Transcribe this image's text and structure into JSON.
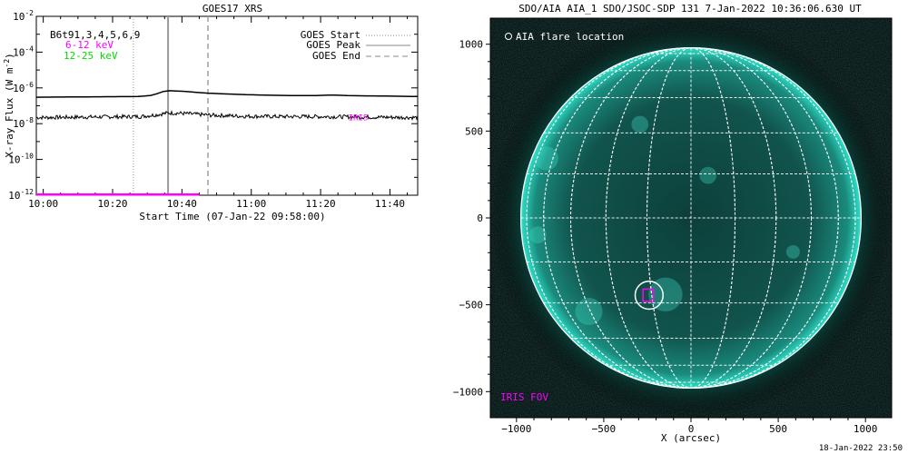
{
  "chart_data": [
    {
      "type": "line",
      "title": "GOES17 XRS",
      "xlabel": "Start Time (07-Jan-22 09:58:00)",
      "ylabel": "X-ray Flux (W m^-2)",
      "ylabel_main": "X-ray Flux (W m",
      "ylabel_unit_sup": "-2",
      "ylabel_close": ")",
      "yscale": "log",
      "ylim": [
        1e-12,
        0.01
      ],
      "xlim_minutes": [
        0,
        110
      ],
      "x_tick_labels": [
        "10:00",
        "10:20",
        "10:40",
        "11:00",
        "11:20",
        "11:40"
      ],
      "x_tick_minutes": [
        2,
        22,
        42,
        62,
        82,
        102
      ],
      "y_tick_exponents": [
        -12,
        -10,
        -8,
        -6,
        -4,
        -2
      ],
      "grid": false,
      "bad_sat_label": "B6t91,3,4,5,6,9",
      "channel_labels": [
        {
          "text": "6-12 keV",
          "color": "#ff00ff"
        },
        {
          "text": "12-25 keV",
          "color": "#00dd00"
        }
      ],
      "legend": {
        "position": "top-right",
        "entries": [
          {
            "label": "GOES Start",
            "style": "dotted",
            "minute": 28
          },
          {
            "label": "GOES Peak",
            "style": "solid",
            "minute": 38
          },
          {
            "label": "GOES End",
            "style": "dashed",
            "minute": 49.5
          }
        ]
      },
      "series": [
        {
          "color": "#000000",
          "x": [
            0,
            10,
            20,
            30,
            34,
            36,
            38,
            42,
            50,
            60,
            70,
            80,
            85,
            90,
            100,
            110
          ],
          "y": [
            3e-07,
            3.1e-07,
            3.2e-07,
            3.3e-07,
            4e-07,
            6e-07,
            7e-07,
            6.5e-07,
            5e-07,
            4.2e-07,
            3.8e-07,
            3.7e-07,
            4e-07,
            3.7e-07,
            3.5e-07,
            3.3e-07
          ]
        },
        {
          "color": "#000000",
          "noisy": true,
          "x": [
            0,
            10,
            20,
            30,
            35,
            38,
            42,
            50,
            60,
            70,
            80,
            90,
            100,
            110
          ],
          "y": [
            2.2e-08,
            2.3e-08,
            2.4e-08,
            2.5e-08,
            3.2e-08,
            4e-08,
            3.8e-08,
            3e-08,
            2.6e-08,
            2.5e-08,
            2.5e-08,
            2.4e-08,
            2.3e-08,
            2.2e-08
          ]
        },
        {
          "color": "#ff00ff",
          "x": [
            0,
            47
          ],
          "y": [
            1.1e-12,
            1.1e-12
          ]
        }
      ],
      "annotations": [
        {
          "text": "IRIS",
          "color": "#ff00ff",
          "minute": 90,
          "flux": 2.5e-08
        }
      ]
    },
    {
      "type": "scatter",
      "title": "SDO/AIA AIA_1 SDO/JSOC-SDP 131  7-Jan-2022 10:36:06.630 UT",
      "xlabel": "X (arcsec)",
      "ylabel": "",
      "xlim": [
        -1150,
        1150
      ],
      "ylim": [
        -1150,
        1150
      ],
      "x_ticks": [
        -1000,
        -500,
        0,
        500,
        1000
      ],
      "y_ticks": [
        -1000,
        -500,
        0,
        500,
        1000
      ],
      "solar_radius_arcsec": 975,
      "grid_spacing_deg": 15,
      "legend_label": "AIA flare location",
      "flare_location": [
        -240,
        -445
      ],
      "flare_circle_radius": 80,
      "iris_fov_label": "IRIS FOV",
      "iris_fov": {
        "x": [
          -275,
          -215
        ],
        "y": [
          -480,
          -410
        ]
      },
      "colors": {
        "disk": "#0f4a44",
        "limb": "#20c4b0",
        "background": "#000000",
        "grid": "#ffffff",
        "iris": "#ff00ff"
      }
    }
  ],
  "footer_timestamp": "18-Jan-2022 23:50"
}
